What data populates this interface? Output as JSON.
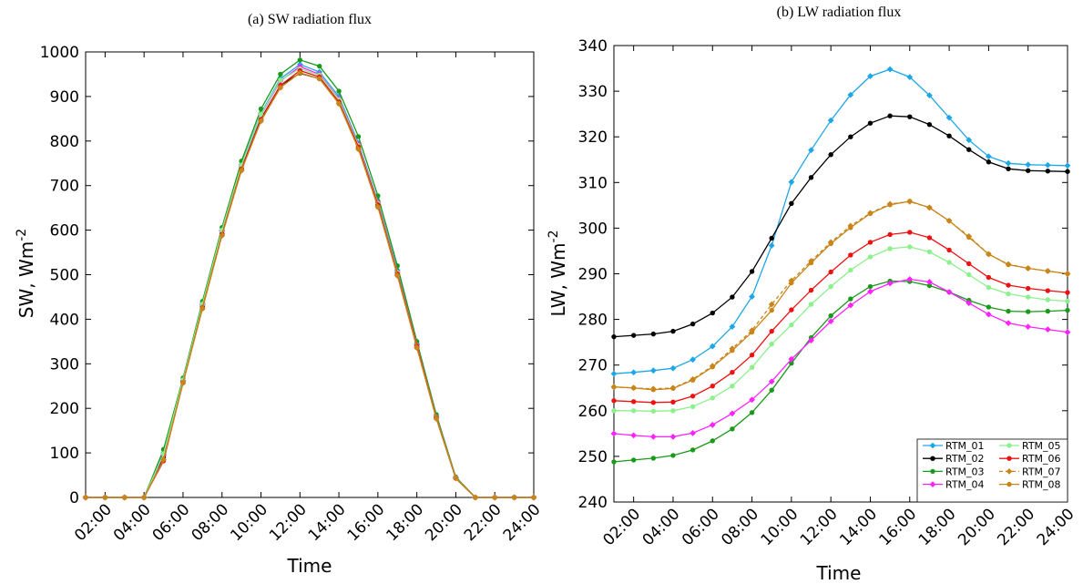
{
  "chart_data": [
    {
      "type": "line",
      "title": "(a) SW radiation flux",
      "xlabel": "Time",
      "ylabel": "SW, Wm",
      "ylabel_sup": "-2",
      "x": [
        1,
        2,
        3,
        4,
        5,
        6,
        7,
        8,
        9,
        10,
        11,
        12,
        13,
        14,
        15,
        16,
        17,
        18,
        19,
        20,
        21,
        22,
        23,
        24
      ],
      "xticks": [
        2,
        4,
        6,
        8,
        10,
        12,
        14,
        16,
        18,
        20,
        22,
        24
      ],
      "xtick_labels": [
        "02:00",
        "04:00",
        "06:00",
        "08:00",
        "10:00",
        "12:00",
        "14:00",
        "16:00",
        "18:00",
        "20:00",
        "22:00",
        "24:00"
      ],
      "xlim": [
        1,
        24
      ],
      "ylim": [
        0,
        1000
      ],
      "yticks": [
        0,
        100,
        200,
        300,
        400,
        500,
        600,
        700,
        800,
        900,
        1000
      ],
      "series": [
        {
          "name": "RTM_01",
          "color": "#1ea7e8",
          "marker": "diamond",
          "values": [
            0,
            0,
            0,
            0,
            100,
            262,
            435,
            600,
            748,
            862,
            940,
            972,
            955,
            900,
            795,
            665,
            510,
            345,
            182,
            45,
            0,
            0,
            0,
            0
          ]
        },
        {
          "name": "RTM_02",
          "color": "#000000",
          "marker": "circle",
          "values": [
            0,
            0,
            0,
            0,
            90,
            260,
            428,
            592,
            738,
            850,
            925,
            952,
            940,
            885,
            785,
            655,
            500,
            338,
            178,
            43,
            0,
            0,
            0,
            0
          ]
        },
        {
          "name": "RTM_03",
          "color": "#1a9a1a",
          "marker": "circle",
          "values": [
            0,
            0,
            0,
            0,
            108,
            268,
            440,
            606,
            755,
            872,
            950,
            982,
            968,
            912,
            810,
            677,
            520,
            350,
            186,
            46,
            0,
            0,
            0,
            0
          ]
        },
        {
          "name": "RTM_04",
          "color": "#ff22ff",
          "marker": "diamond",
          "values": [
            0,
            0,
            0,
            0,
            95,
            263,
            432,
            598,
            744,
            858,
            935,
            967,
            950,
            895,
            792,
            662,
            506,
            342,
            180,
            44,
            0,
            0,
            0,
            0
          ]
        },
        {
          "name": "RTM_05",
          "color": "#8cf08c",
          "marker": "circle",
          "values": [
            0,
            0,
            0,
            0,
            98,
            264,
            434,
            600,
            746,
            860,
            937,
            962,
            948,
            893,
            790,
            660,
            505,
            341,
            180,
            44,
            0,
            0,
            0,
            0
          ]
        },
        {
          "name": "RTM_06",
          "color": "#ee1111",
          "marker": "circle",
          "values": [
            0,
            0,
            0,
            0,
            82,
            258,
            426,
            590,
            737,
            848,
            925,
            958,
            944,
            888,
            787,
            657,
            502,
            340,
            179,
            43,
            0,
            0,
            0,
            0
          ]
        },
        {
          "name": "RTM_07",
          "color": "#c8861a",
          "marker": "diamond",
          "dashed": true,
          "values": [
            0,
            0,
            0,
            0,
            85,
            257,
            424,
            588,
            734,
            845,
            920,
            953,
            940,
            884,
            782,
            652,
            498,
            336,
            177,
            43,
            0,
            0,
            0,
            0
          ]
        },
        {
          "name": "RTM_08",
          "color": "#c8861a",
          "marker": "circle",
          "values": [
            0,
            0,
            0,
            0,
            85,
            257,
            424,
            588,
            734,
            845,
            920,
            953,
            940,
            884,
            782,
            652,
            498,
            336,
            177,
            43,
            0,
            0,
            0,
            0
          ]
        }
      ]
    },
    {
      "type": "line",
      "title": "(b) LW radiation flux",
      "xlabel": "Time",
      "ylabel": "LW, Wm",
      "ylabel_sup": "-2",
      "x": [
        1,
        2,
        3,
        4,
        5,
        6,
        7,
        8,
        9,
        10,
        11,
        12,
        13,
        14,
        15,
        16,
        17,
        18,
        19,
        20,
        21,
        22,
        23,
        24
      ],
      "xticks": [
        2,
        4,
        6,
        8,
        10,
        12,
        14,
        16,
        18,
        20,
        22,
        24
      ],
      "xtick_labels": [
        "02:00",
        "04:00",
        "06:00",
        "08:00",
        "10:00",
        "12:00",
        "14:00",
        "16:00",
        "18:00",
        "20:00",
        "22:00",
        "24:00"
      ],
      "xlim": [
        1,
        24
      ],
      "ylim": [
        240,
        340
      ],
      "yticks": [
        240,
        250,
        260,
        270,
        280,
        290,
        300,
        310,
        320,
        330,
        340
      ],
      "legend": "bottom-right",
      "series": [
        {
          "name": "RTM_01",
          "color": "#1ea7e8",
          "marker": "diamond",
          "values": [
            268.1,
            268.4,
            268.8,
            269.3,
            271.2,
            274.1,
            278.4,
            285.0,
            296.2,
            310.1,
            317.1,
            323.6,
            329.2,
            333.3,
            334.8,
            333.1,
            329.1,
            324.2,
            319.3,
            315.7,
            314.2,
            313.9,
            313.8,
            313.7
          ]
        },
        {
          "name": "RTM_02",
          "color": "#000000",
          "marker": "circle",
          "values": [
            276.2,
            276.5,
            276.8,
            277.4,
            279.0,
            281.4,
            284.9,
            290.5,
            297.8,
            305.4,
            311.1,
            316.1,
            320.0,
            323.0,
            324.6,
            324.4,
            322.7,
            320.2,
            317.2,
            314.5,
            313.0,
            312.6,
            312.5,
            312.4
          ]
        },
        {
          "name": "RTM_03",
          "color": "#1a9a1a",
          "marker": "circle",
          "values": [
            248.8,
            249.2,
            249.6,
            250.2,
            251.4,
            253.4,
            256.0,
            259.6,
            264.5,
            270.4,
            276.0,
            280.8,
            284.5,
            287.2,
            288.4,
            288.3,
            287.4,
            286.0,
            284.2,
            282.7,
            281.8,
            281.7,
            281.8,
            282.0
          ]
        },
        {
          "name": "RTM_04",
          "color": "#ff22ff",
          "marker": "diamond",
          "values": [
            255.0,
            254.6,
            254.3,
            254.3,
            255.1,
            256.9,
            259.4,
            262.4,
            266.4,
            271.3,
            275.4,
            279.6,
            283.1,
            286.1,
            287.9,
            288.8,
            288.2,
            286.0,
            283.6,
            281.1,
            279.2,
            278.4,
            277.8,
            277.2
          ]
        },
        {
          "name": "RTM_05",
          "color": "#8cf08c",
          "marker": "circle",
          "values": [
            260.0,
            260.0,
            259.9,
            260.0,
            260.9,
            262.8,
            265.4,
            269.5,
            274.6,
            278.8,
            283.3,
            287.2,
            290.8,
            293.7,
            295.5,
            295.9,
            294.8,
            292.5,
            289.8,
            287.0,
            285.6,
            284.9,
            284.3,
            284.0
          ]
        },
        {
          "name": "RTM_06",
          "color": "#ee1111",
          "marker": "circle",
          "values": [
            262.2,
            262.0,
            261.8,
            261.9,
            263.2,
            265.4,
            268.4,
            272.2,
            277.4,
            282.1,
            286.4,
            290.4,
            294.1,
            296.9,
            298.6,
            299.1,
            297.9,
            295.2,
            292.2,
            289.2,
            287.5,
            286.8,
            286.3,
            285.9
          ]
        },
        {
          "name": "RTM_07",
          "color": "#c8861a",
          "marker": "diamond",
          "dashed": true,
          "values": [
            265.2,
            265.0,
            264.8,
            265.0,
            266.9,
            269.8,
            273.6,
            277.6,
            283.3,
            288.5,
            292.8,
            296.9,
            300.5,
            303.3,
            305.3,
            305.8,
            304.5,
            301.6,
            298.2,
            294.3,
            292.1,
            291.2,
            290.6,
            290.0
          ]
        },
        {
          "name": "RTM_08",
          "color": "#c8861a",
          "marker": "circle",
          "values": [
            265.2,
            265.0,
            264.6,
            264.9,
            266.7,
            269.6,
            273.2,
            277.2,
            282.0,
            288.0,
            292.4,
            296.6,
            300.1,
            303.2,
            305.1,
            305.9,
            304.5,
            301.6,
            298.0,
            294.3,
            292.0,
            291.2,
            290.6,
            290.0
          ]
        }
      ]
    }
  ]
}
